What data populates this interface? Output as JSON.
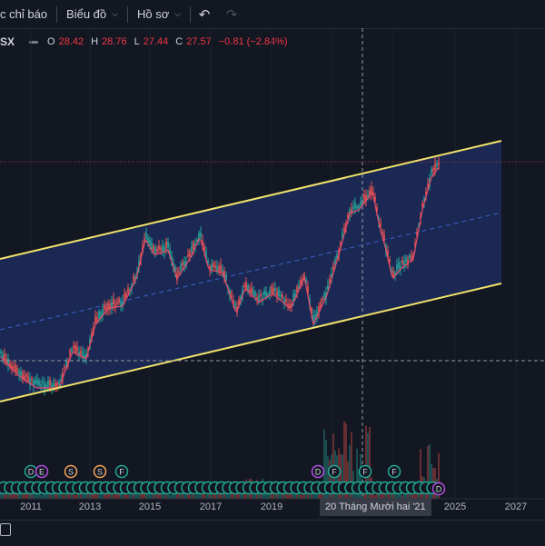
{
  "toolbar": {
    "indicators_label": "c chỉ báo",
    "chart_menu_label": "Biểu đồ",
    "profile_menu_label": "Hồ sơ"
  },
  "legend": {
    "symbol": "SX",
    "open_key": "O",
    "open_value": "28.42",
    "high_key": "H",
    "high_value": "28.76",
    "low_key": "L",
    "low_value": "27.44",
    "close_key": "C",
    "close_value": "27.57",
    "change": "−0.81 (−2.84%)"
  },
  "xaxis": {
    "ticks": [
      "2011",
      "2013",
      "2015",
      "2017",
      "2019",
      "2025",
      "2027"
    ],
    "crosshair_label": "20 Tháng Mười hai '21"
  },
  "events": {
    "row1": [
      "D",
      "E",
      "S",
      "S",
      "F",
      "D",
      "F",
      "F",
      "F"
    ],
    "last": "D"
  },
  "colors": {
    "background": "#131722",
    "channel_fill": "#1c2b5c",
    "channel_lines": "#f2e46b",
    "up": "#26a69a",
    "down": "#ef5350",
    "ma": "#e84d6c"
  }
}
